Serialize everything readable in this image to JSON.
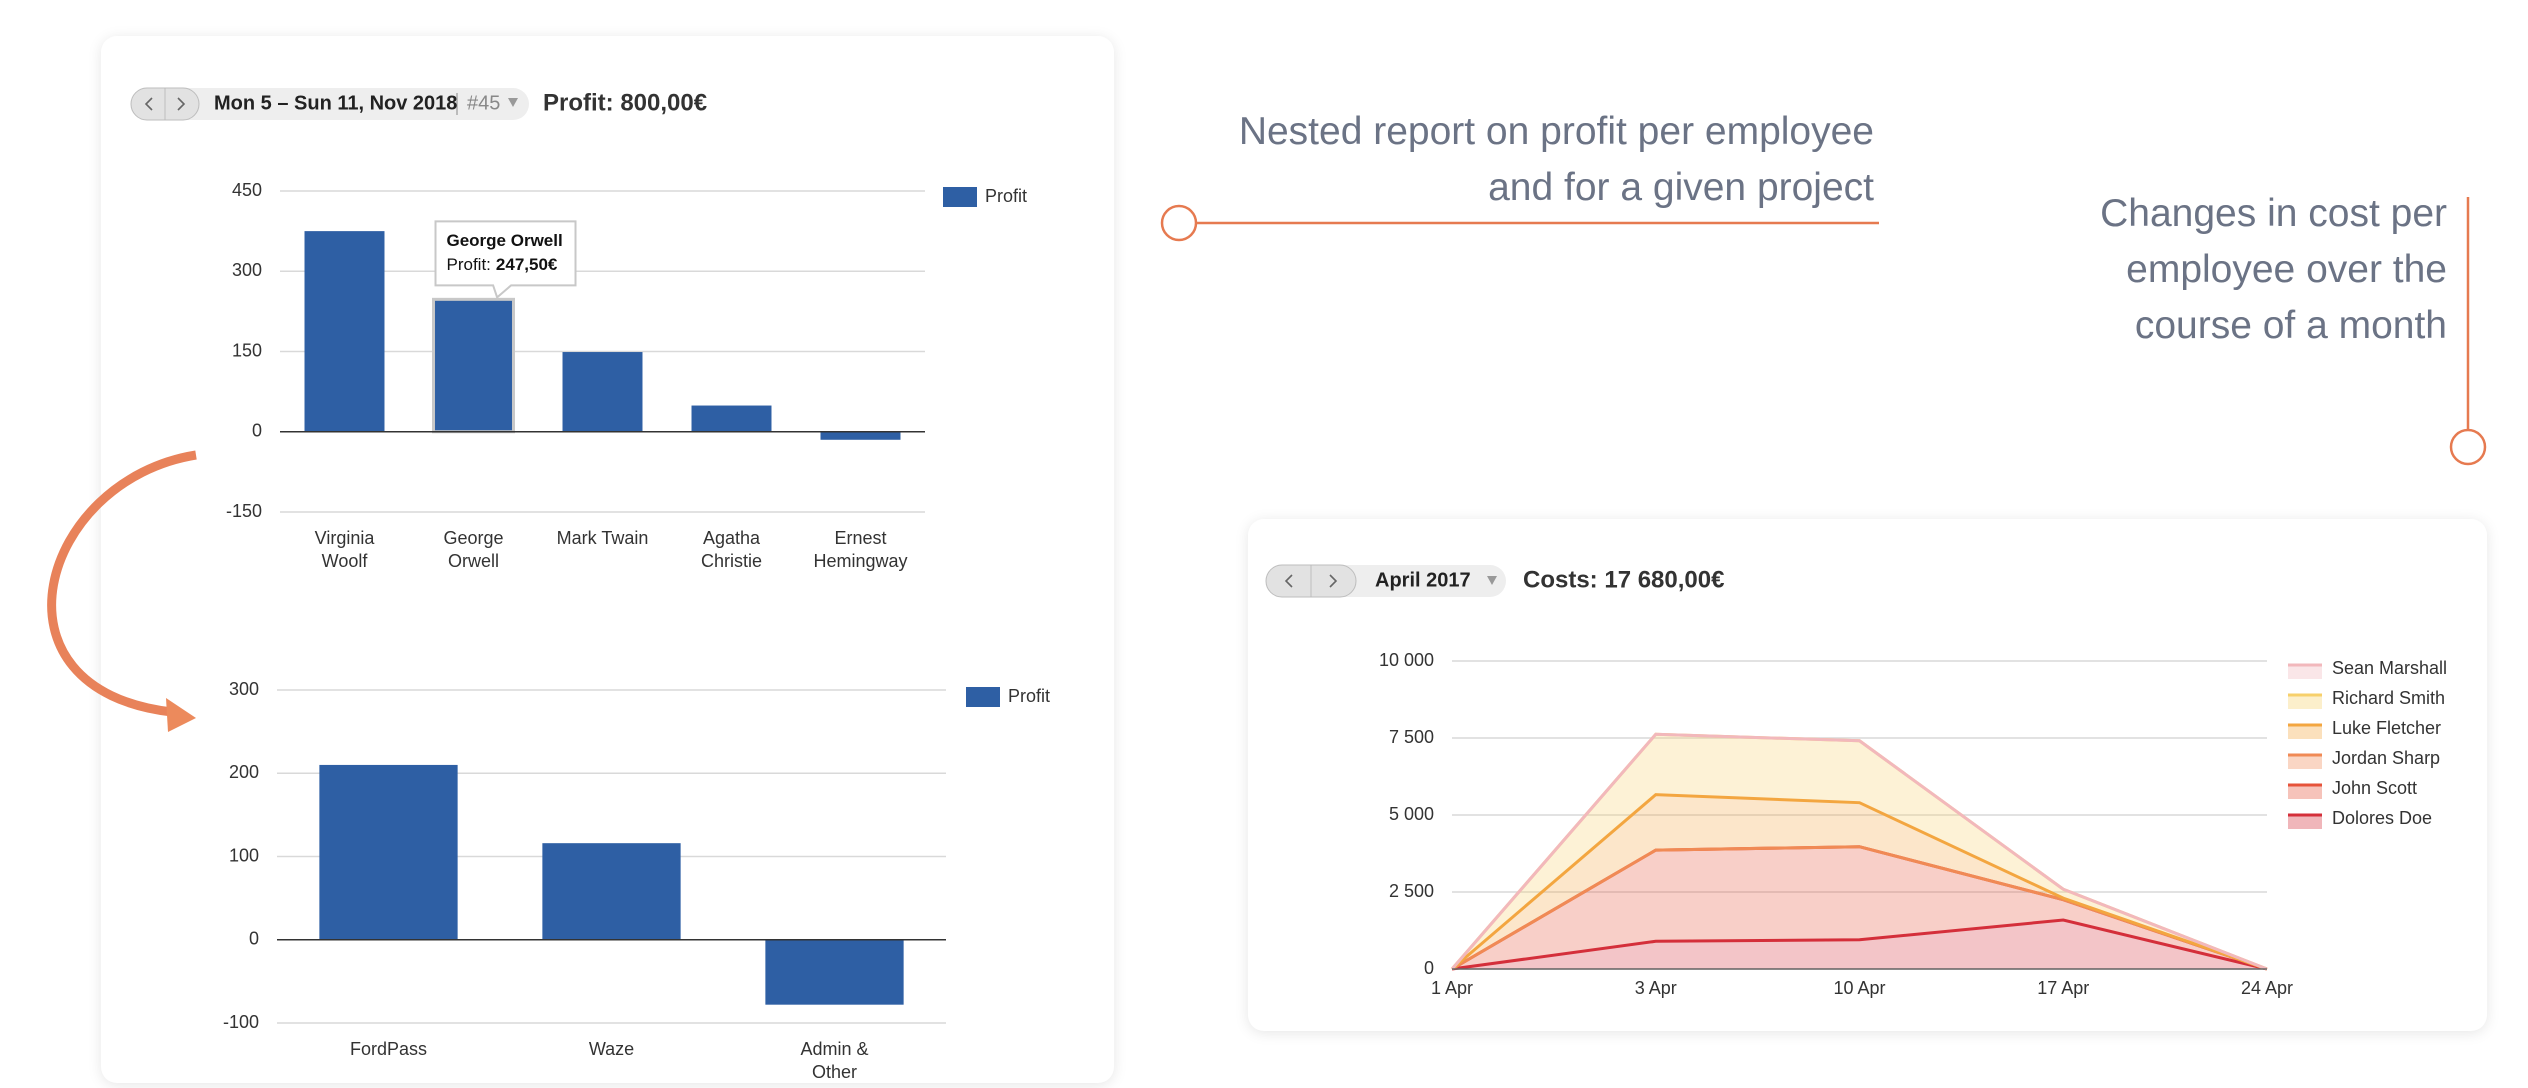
{
  "annotations": [
    {
      "lines": [
        "Nested report on profit per employee",
        "and for a given project"
      ]
    },
    {
      "lines": [
        "Changes in cost per",
        "employee over the",
        "course of a month"
      ]
    }
  ],
  "panels": [
    {
      "period": "Mon 5 – Sun 11, Nov 2018",
      "week": "#45",
      "summary": "Profit: 800,00€"
    },
    {
      "period": "April 2017",
      "summary": "Costs: 17 680,00€"
    }
  ],
  "chart_data": [
    {
      "type": "bar",
      "categories": [
        "Virginia Woolf",
        "George Orwell",
        "Mark Twain",
        "Agatha Christie",
        "Ernest Hemingway"
      ],
      "series": [
        {
          "name": "Profit",
          "color": "#2e5fa4",
          "values": [
            375,
            247.5,
            149,
            49,
            -15
          ]
        }
      ],
      "ylim": [
        -150,
        450
      ],
      "yticks": [
        -150,
        0,
        150,
        300,
        450
      ],
      "grid": true,
      "legend": "top-right",
      "tooltip": {
        "name": "George Orwell",
        "label": "Profit:",
        "value_label": "247,50€"
      }
    },
    {
      "type": "bar",
      "categories": [
        "FordPass",
        "Waze",
        "Admin & Other"
      ],
      "series": [
        {
          "name": "Profit",
          "color": "#2e5fa4",
          "values": [
            210,
            116,
            -78
          ]
        }
      ],
      "ylim": [
        -100,
        300
      ],
      "yticks": [
        -100,
        0,
        100,
        200,
        300
      ],
      "grid": true,
      "legend": "top-right"
    },
    {
      "type": "stacked_area",
      "categories": [
        "1 Apr",
        "3 Apr",
        "10 Apr",
        "17 Apr",
        "24 Apr"
      ],
      "series": [
        {
          "name": "Sean Marshall",
          "color": "#f2b8bc",
          "values": [
            0,
            0,
            0,
            0,
            0
          ]
        },
        {
          "name": "Richard Smith",
          "color": "#f7d06b",
          "values": [
            0,
            1960,
            2010,
            290,
            0
          ]
        },
        {
          "name": "Luke Fletcher",
          "color": "#f3a640",
          "values": [
            0,
            1800,
            1430,
            50,
            0
          ]
        },
        {
          "name": "Jordan Sharp",
          "color": "#f08a55",
          "values": [
            0,
            0,
            0,
            0,
            0
          ]
        },
        {
          "name": "John Scott",
          "color": "#e6533a",
          "values": [
            0,
            2960,
            3020,
            660,
            0
          ]
        },
        {
          "name": "Dolores Doe",
          "color": "#d42f3a",
          "values": [
            0,
            900,
            950,
            1590,
            0
          ]
        }
      ],
      "ylim": [
        0,
        10000
      ],
      "yticks": [
        0,
        {
          "value": 2500,
          "label": "2 500"
        },
        {
          "value": 5000,
          "label": "5 000"
        },
        {
          "value": 7500,
          "label": "7 500"
        },
        {
          "value": 10000,
          "label": "10 000"
        }
      ],
      "grid": true,
      "legend": "right"
    }
  ]
}
